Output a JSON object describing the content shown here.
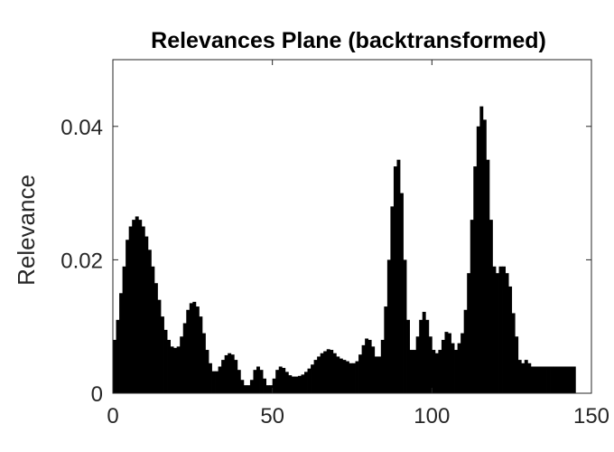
{
  "chart_data": {
    "type": "bar",
    "title": "Relevances Plane (backtransformed)",
    "xlabel": "",
    "ylabel": "Relevance",
    "xlim": [
      0,
      150
    ],
    "ylim": [
      0,
      0.05
    ],
    "xticks": [
      0,
      50,
      100,
      150
    ],
    "xtick_labels": [
      "0",
      "50",
      "100",
      "150"
    ],
    "yticks": [
      0,
      0.02,
      0.04
    ],
    "ytick_labels": [
      "0",
      "0.02",
      "0.04"
    ],
    "grid": false,
    "bar_color": "#000000",
    "x": [
      1,
      2,
      3,
      4,
      5,
      6,
      7,
      8,
      9,
      10,
      11,
      12,
      13,
      14,
      15,
      16,
      17,
      18,
      19,
      20,
      21,
      22,
      23,
      24,
      25,
      26,
      27,
      28,
      29,
      30,
      31,
      32,
      33,
      34,
      35,
      36,
      37,
      38,
      39,
      40,
      41,
      42,
      43,
      44,
      45,
      46,
      47,
      48,
      49,
      50,
      51,
      52,
      53,
      54,
      55,
      56,
      57,
      58,
      59,
      60,
      61,
      62,
      63,
      64,
      65,
      66,
      67,
      68,
      69,
      70,
      71,
      72,
      73,
      74,
      75,
      76,
      77,
      78,
      79,
      80,
      81,
      82,
      83,
      84,
      85,
      86,
      87,
      88,
      89,
      90,
      91,
      92,
      93,
      94,
      95,
      96,
      97,
      98,
      99,
      100,
      101,
      102,
      103,
      104,
      105,
      106,
      107,
      108,
      109,
      110,
      111,
      112,
      113,
      114,
      115,
      116,
      117,
      118,
      119,
      120,
      121,
      122,
      123,
      124,
      125,
      126,
      127,
      128,
      129,
      130,
      131,
      132,
      133,
      134,
      135,
      136,
      137,
      138,
      139,
      140,
      141,
      142,
      143,
      144,
      145
    ],
    "values": [
      0.008,
      0.011,
      0.015,
      0.019,
      0.023,
      0.025,
      0.026,
      0.0265,
      0.026,
      0.025,
      0.0235,
      0.0215,
      0.019,
      0.0165,
      0.014,
      0.0115,
      0.0095,
      0.008,
      0.007,
      0.0068,
      0.007,
      0.0085,
      0.0105,
      0.0125,
      0.0135,
      0.0137,
      0.013,
      0.0115,
      0.009,
      0.0065,
      0.0045,
      0.0033,
      0.0033,
      0.004,
      0.005,
      0.0057,
      0.006,
      0.0058,
      0.005,
      0.0035,
      0.002,
      0.0012,
      0.0012,
      0.002,
      0.0035,
      0.004,
      0.0035,
      0.0022,
      0.0012,
      0.0012,
      0.0022,
      0.0035,
      0.004,
      0.0038,
      0.0032,
      0.0027,
      0.0025,
      0.0025,
      0.0026,
      0.0028,
      0.0032,
      0.0037,
      0.0043,
      0.005,
      0.0055,
      0.006,
      0.0063,
      0.0066,
      0.0065,
      0.006,
      0.0055,
      0.0052,
      0.005,
      0.0048,
      0.0045,
      0.0045,
      0.0048,
      0.0058,
      0.0072,
      0.0082,
      0.008,
      0.007,
      0.0055,
      0.0055,
      0.008,
      0.013,
      0.02,
      0.028,
      0.034,
      0.035,
      0.03,
      0.02,
      0.011,
      0.0065,
      0.0065,
      0.0085,
      0.011,
      0.0122,
      0.011,
      0.0085,
      0.0065,
      0.006,
      0.0065,
      0.008,
      0.0092,
      0.009,
      0.0075,
      0.0065,
      0.0075,
      0.009,
      0.0125,
      0.018,
      0.026,
      0.034,
      0.04,
      0.043,
      0.041,
      0.035,
      0.026,
      0.019,
      0.018,
      0.019,
      0.019,
      0.018,
      0.016,
      0.012,
      0.0085,
      0.005,
      0.0045,
      0.005,
      0.0045,
      0.004,
      0.004,
      0.004,
      0.004,
      0.004,
      0.004,
      0.004,
      0.004,
      0.004,
      0.004,
      0.004,
      0.004,
      0.004,
      0.004
    ]
  }
}
